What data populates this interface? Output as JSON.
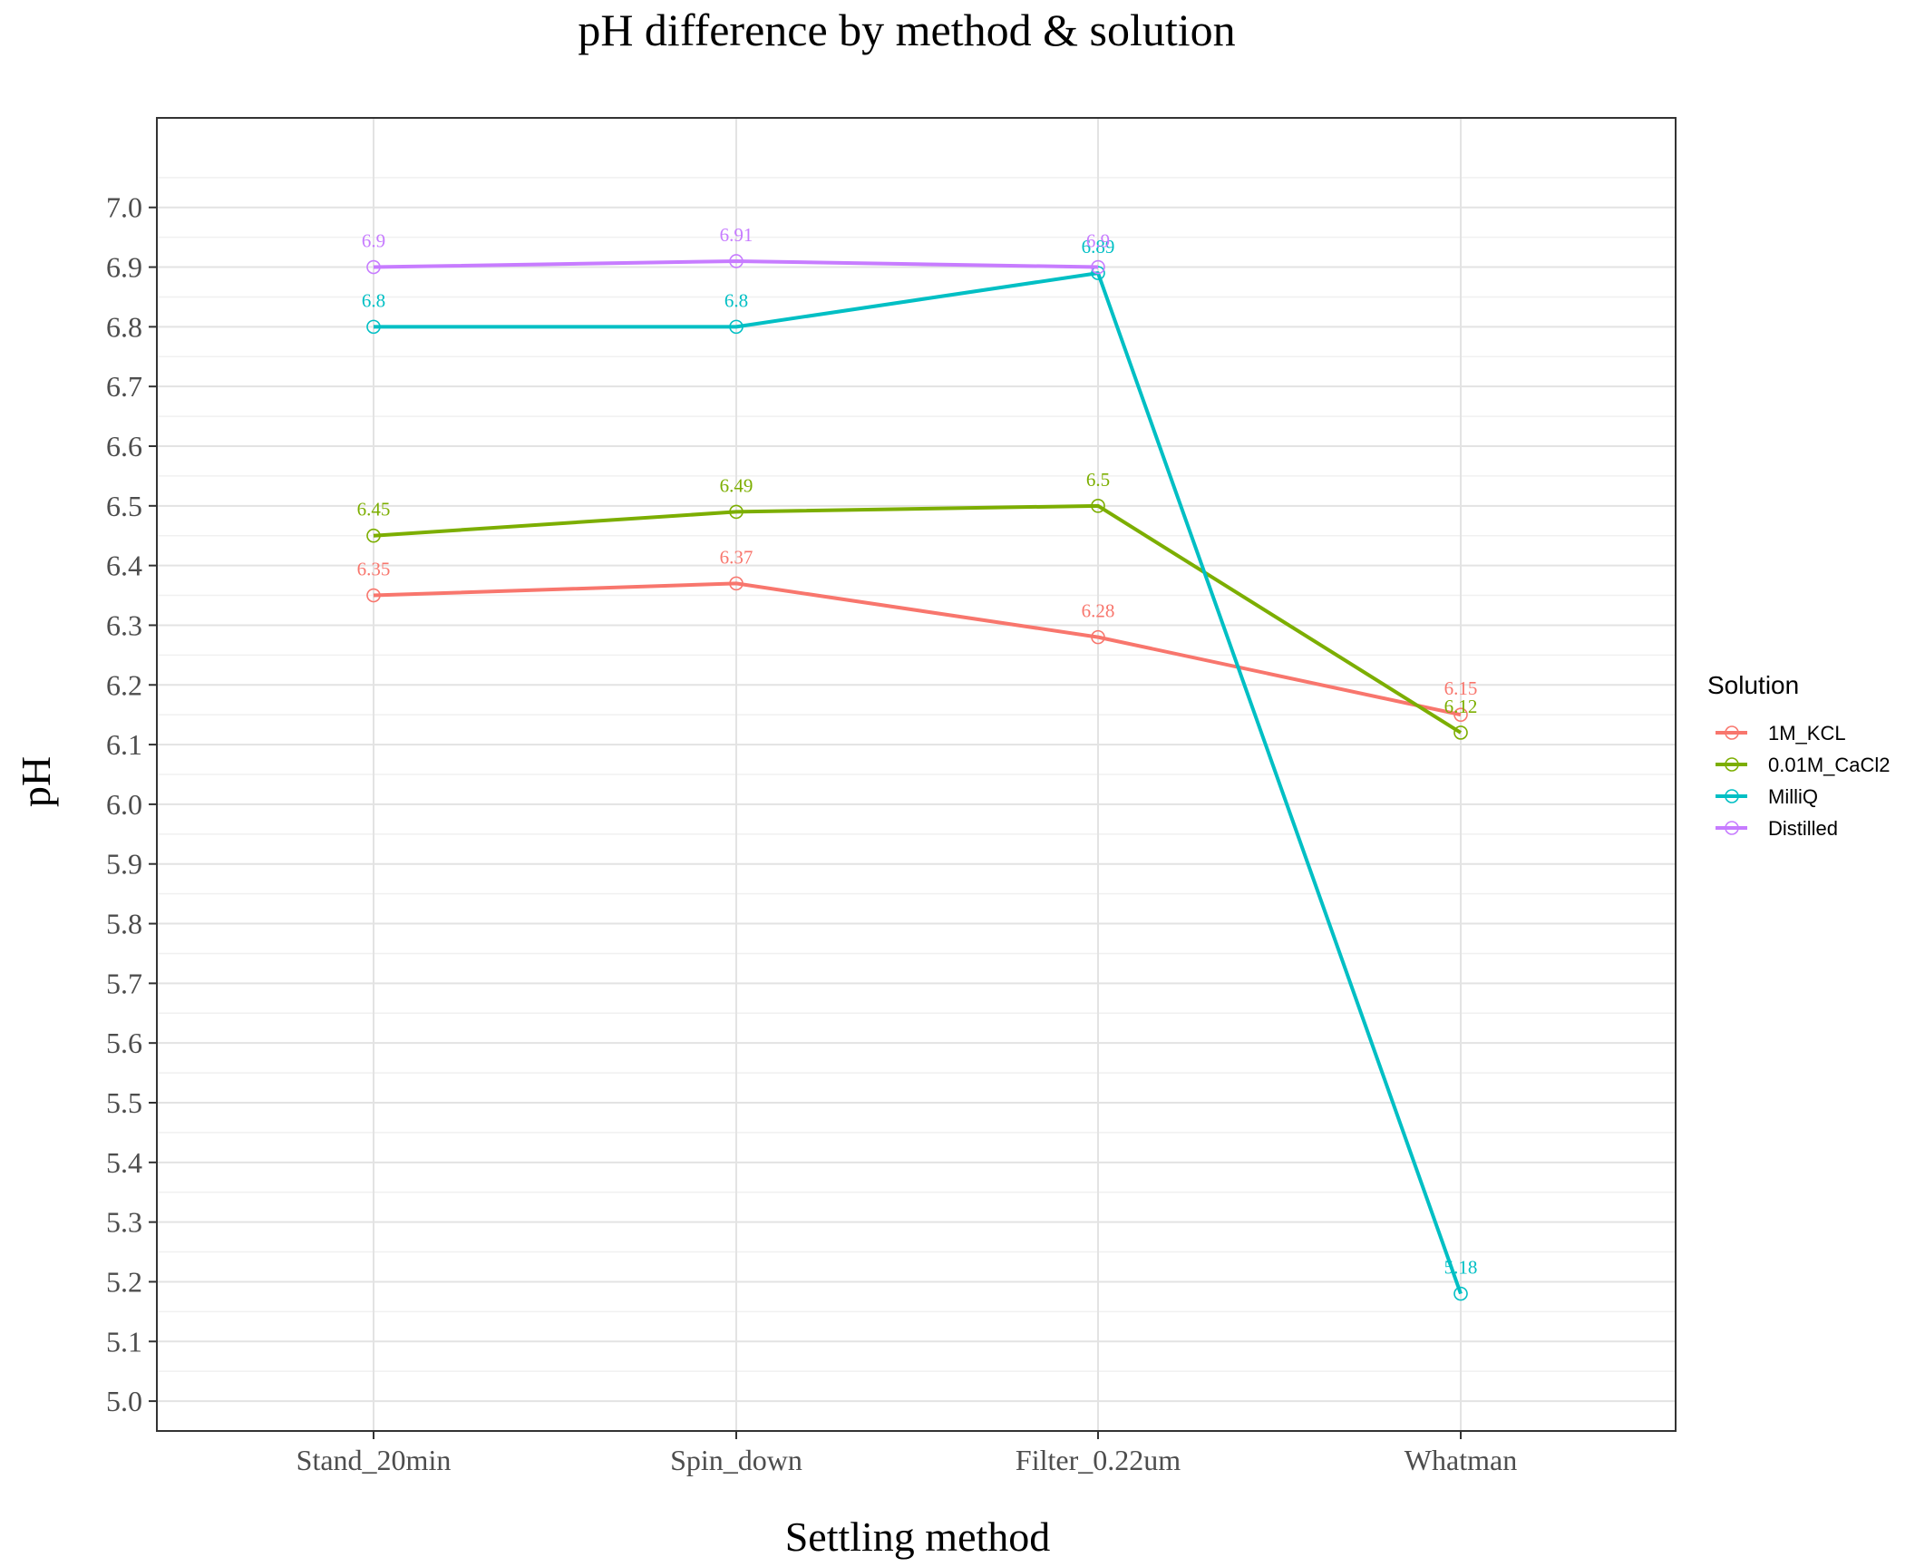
{
  "chart_data": {
    "type": "line",
    "title": "pH difference by method & solution",
    "xlabel": "Settling method",
    "ylabel": "pH",
    "categories": [
      "Stand_20min",
      "Spin_down",
      "Filter_0.22um",
      "Whatman"
    ],
    "ylim": [
      4.9,
      7.1
    ],
    "yticks": [
      "5.0",
      "5.1",
      "5.2",
      "5.3",
      "5.4",
      "5.5",
      "5.6",
      "5.7",
      "5.8",
      "5.9",
      "6.0",
      "6.1",
      "6.2",
      "6.3",
      "6.4",
      "6.5",
      "6.6",
      "6.7",
      "6.8",
      "6.9",
      "7.0"
    ],
    "grid": true,
    "legend": {
      "title": "Solution",
      "position": "right"
    },
    "series": [
      {
        "name": "1M_KCL",
        "color": "#F8766D",
        "values": [
          6.35,
          6.37,
          6.28,
          6.15
        ],
        "labels": [
          "6.35",
          "6.37",
          "6.28",
          "6.15"
        ]
      },
      {
        "name": "0.01M_CaCl2",
        "color": "#7CAE00",
        "values": [
          6.45,
          6.49,
          6.5,
          6.12
        ],
        "labels": [
          "6.45",
          "6.49",
          "6.5",
          "6.12"
        ]
      },
      {
        "name": "MilliQ",
        "color": "#00BFC4",
        "values": [
          6.8,
          6.8,
          6.89,
          5.18
        ],
        "labels": [
          "6.8",
          "6.8",
          "6.89",
          "5.18"
        ]
      },
      {
        "name": "Distilled",
        "color": "#C77CFF",
        "values": [
          6.9,
          6.91,
          6.9,
          null
        ],
        "labels": [
          "6.9",
          "6.91",
          "6.9",
          ""
        ]
      }
    ]
  }
}
